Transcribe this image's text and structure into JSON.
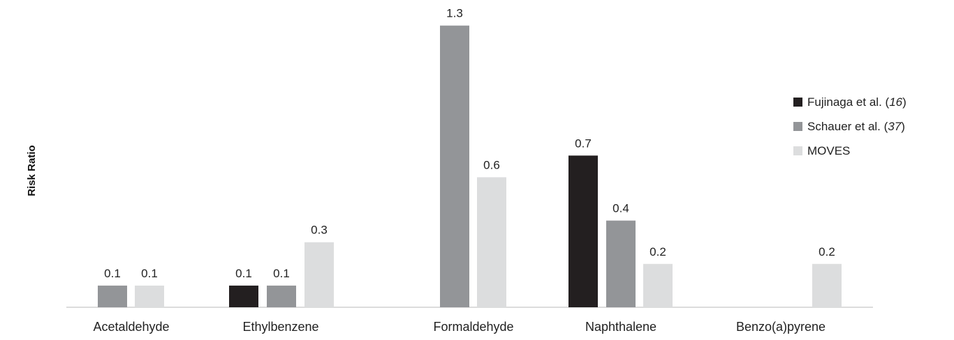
{
  "chart_data": {
    "type": "bar",
    "title": "",
    "xlabel": "",
    "ylabel": "Risk Ratio",
    "ylim": [
      0,
      1.4
    ],
    "grid": false,
    "legend_position": "right",
    "categories": [
      "Acetaldehyde",
      "Ethylbenzene",
      "Formaldehyde",
      "Naphthalene",
      "Benzo(a)pyrene"
    ],
    "series": [
      {
        "name": "Fujinaga et al. (16)",
        "name_text": "Fujinaga et al. (",
        "name_ref": "16",
        "color": "#231f20",
        "values": [
          null,
          0.1,
          null,
          0.7,
          null
        ],
        "labels": [
          "",
          "0.1",
          "",
          "0.7",
          ""
        ]
      },
      {
        "name": "Schauer et al. (37)",
        "name_text": "Schauer et al. (",
        "name_ref": "37",
        "color": "#939598",
        "values": [
          0.1,
          0.1,
          1.3,
          0.4,
          null
        ],
        "labels": [
          "0.1",
          "0.1",
          "1.3",
          "0.4",
          ""
        ]
      },
      {
        "name": "MOVES",
        "name_text": "MOVES",
        "name_ref": "",
        "color": "#dcddde",
        "values": [
          0.1,
          0.3,
          0.6,
          0.2,
          0.2
        ],
        "labels": [
          "0.1",
          "0.3",
          "0.6",
          "0.2",
          "0.2"
        ]
      }
    ]
  }
}
